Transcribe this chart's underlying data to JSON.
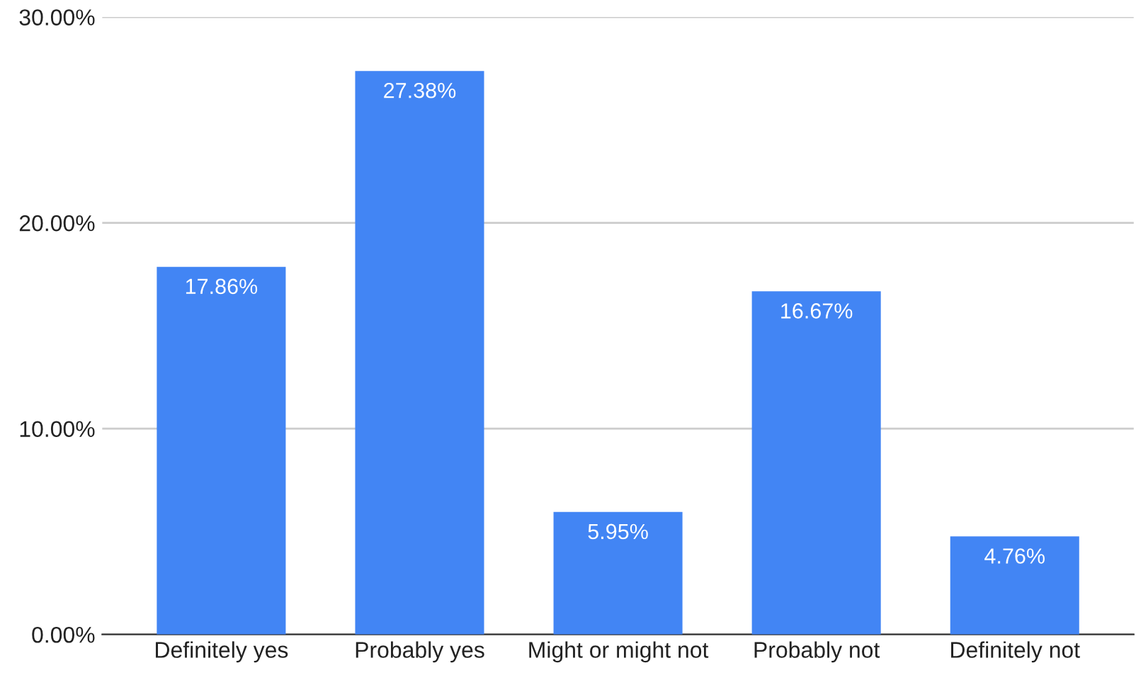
{
  "chart_data": {
    "type": "bar",
    "categories": [
      "Definitely yes",
      "Probably yes",
      "Might or might not",
      "Probably not",
      "Definitely not"
    ],
    "values": [
      17.86,
      27.38,
      5.95,
      16.67,
      4.76
    ],
    "value_labels": [
      "17.86%",
      "27.38%",
      "5.95%",
      "16.67%",
      "4.76%"
    ],
    "color": "#4285f4",
    "ylim": [
      0,
      30
    ],
    "yticks": [
      {
        "value": 0,
        "label": "0.00%"
      },
      {
        "value": 10,
        "label": "10.00%"
      },
      {
        "value": 20,
        "label": "20.00%"
      },
      {
        "value": 30,
        "label": "30.00%"
      }
    ],
    "grid": "y",
    "legend": false
  }
}
